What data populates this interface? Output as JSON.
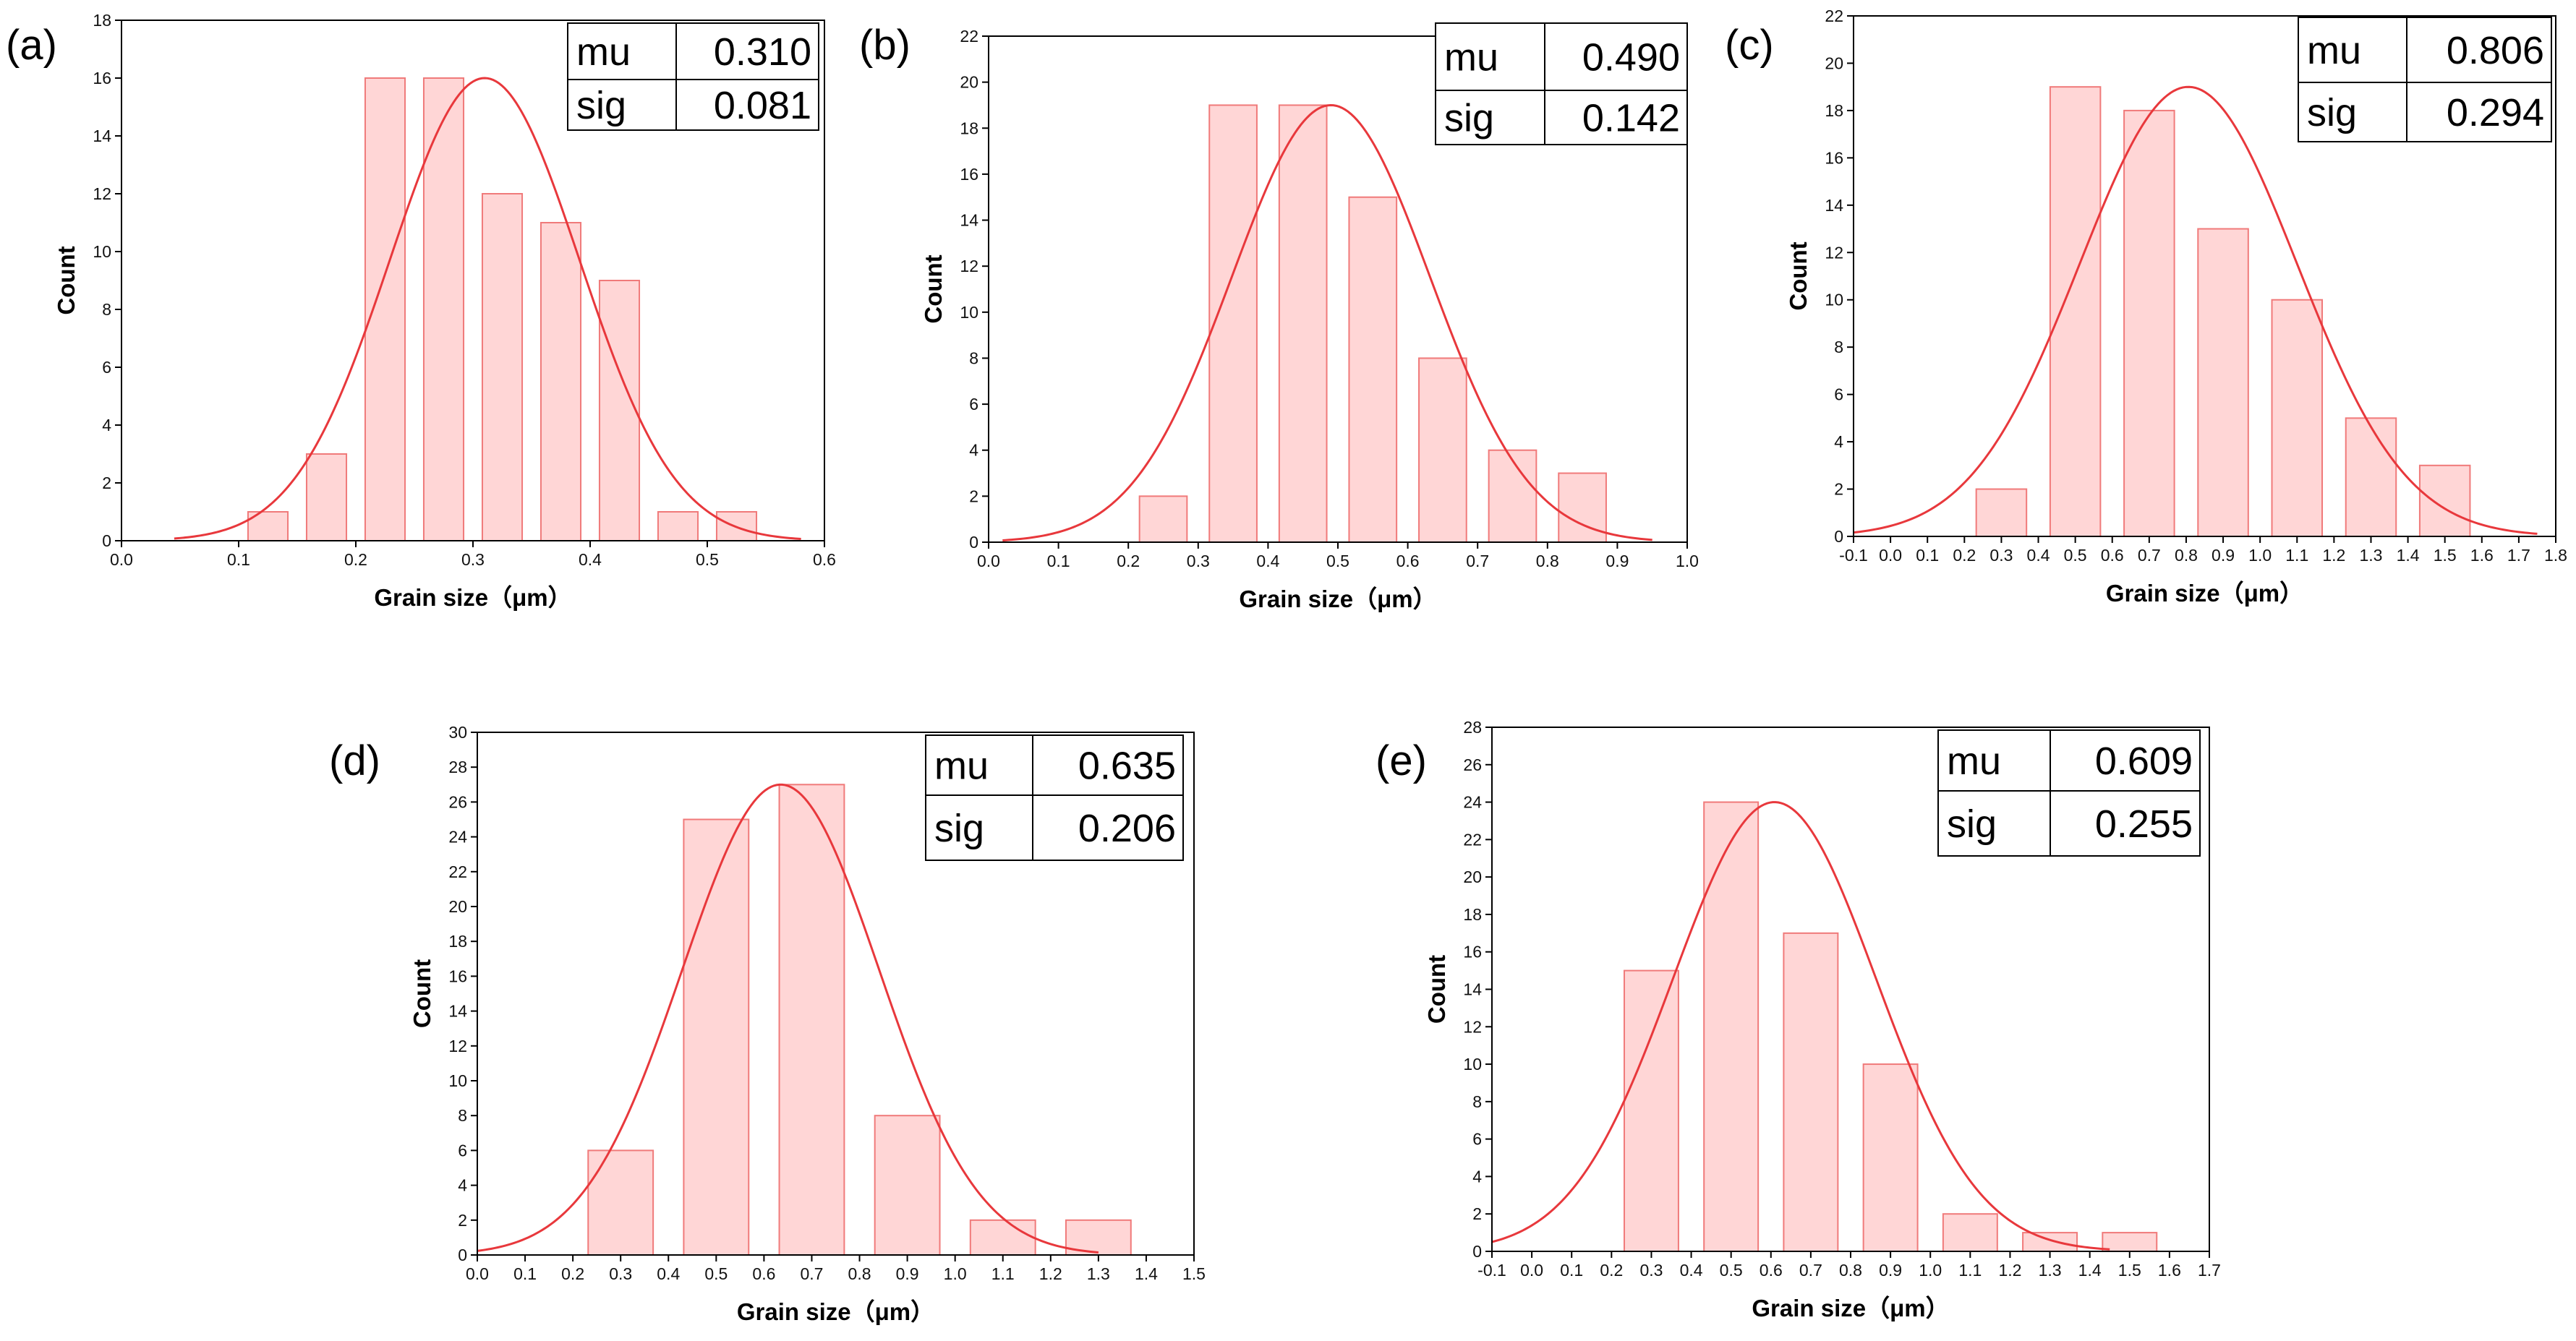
{
  "colors": {
    "bar_fill": "#ffd6d6",
    "bar_stroke": "#f07a7a",
    "curve": "#e8383c",
    "axis": "#000000"
  },
  "chart_data": [
    {
      "panel": "(a)",
      "type": "bar",
      "title": "",
      "xlabel": "Grain size（μm）",
      "ylabel": "Count",
      "xlim": [
        0.0,
        0.6
      ],
      "ylim": [
        0,
        18
      ],
      "xticks": [
        "0.0",
        "0.1",
        "0.2",
        "0.3",
        "0.4",
        "0.5",
        "0.6"
      ],
      "yticks": [
        "0",
        "2",
        "4",
        "6",
        "8",
        "10",
        "12",
        "14",
        "16",
        "18"
      ],
      "bin_width": 0.05,
      "x": [
        0.125,
        0.175,
        0.225,
        0.275,
        0.325,
        0.375,
        0.425,
        0.475,
        0.525
      ],
      "values": [
        1,
        3,
        16,
        16,
        12,
        11,
        9,
        1,
        1
      ],
      "fit": {
        "type": "normal",
        "mu": 0.31,
        "sig": 0.081,
        "peak": 16,
        "x_range": [
          0.045,
          0.58
        ]
      },
      "stats_table": [
        {
          "label": "mu",
          "value": "0.310"
        },
        {
          "label": "sig",
          "value": "0.081"
        }
      ]
    },
    {
      "panel": "(b)",
      "type": "bar",
      "title": "",
      "xlabel": "Grain size（μm）",
      "ylabel": "Count",
      "xlim": [
        0.0,
        1.0
      ],
      "ylim": [
        0,
        22
      ],
      "xticks": [
        "0.0",
        "0.1",
        "0.2",
        "0.3",
        "0.4",
        "0.5",
        "0.6",
        "0.7",
        "0.8",
        "0.9",
        "1.0"
      ],
      "yticks": [
        "0",
        "2",
        "4",
        "6",
        "8",
        "10",
        "12",
        "14",
        "16",
        "18",
        "20",
        "22"
      ],
      "bin_width": 0.1,
      "x": [
        0.25,
        0.35,
        0.45,
        0.55,
        0.65,
        0.75,
        0.85
      ],
      "values": [
        2,
        19,
        19,
        15,
        8,
        4,
        3
      ],
      "fit": {
        "type": "normal",
        "mu": 0.49,
        "sig": 0.142,
        "peak": 19,
        "x_range": [
          0.02,
          0.95
        ]
      },
      "stats_table": [
        {
          "label": "mu",
          "value": "0.490"
        },
        {
          "label": "sig",
          "value": "0.142"
        }
      ]
    },
    {
      "panel": "(c)",
      "type": "bar",
      "title": "",
      "xlabel": "Grain size（μm）",
      "ylabel": "Count",
      "xlim": [
        -0.1,
        1.8
      ],
      "ylim": [
        0,
        22
      ],
      "xticks": [
        "-0.1",
        "0.0",
        "0.1",
        "0.2",
        "0.3",
        "0.4",
        "0.5",
        "0.6",
        "0.7",
        "0.8",
        "0.9",
        "1.0",
        "1.1",
        "1.2",
        "1.3",
        "1.4",
        "1.5",
        "1.6",
        "1.7",
        "1.8"
      ],
      "yticks": [
        "0",
        "2",
        "4",
        "6",
        "8",
        "10",
        "12",
        "14",
        "16",
        "18",
        "20",
        "22"
      ],
      "bin_width": 0.2,
      "x": [
        0.3,
        0.5,
        0.7,
        0.9,
        1.1,
        1.3,
        1.5
      ],
      "values": [
        2,
        19,
        18,
        13,
        10,
        5,
        3
      ],
      "fit": {
        "type": "normal",
        "mu": 0.806,
        "sig": 0.294,
        "peak": 19,
        "x_range": [
          -0.1,
          1.75
        ]
      },
      "stats_table": [
        {
          "label": "mu",
          "value": "0.806"
        },
        {
          "label": "sig",
          "value": "0.294"
        }
      ]
    },
    {
      "panel": "(d)",
      "type": "bar",
      "title": "",
      "xlabel": "Grain size（μm）",
      "ylabel": "Count",
      "xlim": [
        0.0,
        1.5
      ],
      "ylim": [
        0,
        30
      ],
      "xticks": [
        "0.0",
        "0.1",
        "0.2",
        "0.3",
        "0.4",
        "0.5",
        "0.6",
        "0.7",
        "0.8",
        "0.9",
        "1.0",
        "1.1",
        "1.2",
        "1.3",
        "1.4",
        "1.5"
      ],
      "yticks": [
        "0",
        "2",
        "4",
        "6",
        "8",
        "10",
        "12",
        "14",
        "16",
        "18",
        "20",
        "22",
        "24",
        "26",
        "28",
        "30"
      ],
      "bin_width": 0.2,
      "x": [
        0.3,
        0.5,
        0.7,
        0.9,
        1.1,
        1.3
      ],
      "values": [
        6,
        25,
        27,
        8,
        2,
        2
      ],
      "fit": {
        "type": "normal",
        "mu": 0.635,
        "sig": 0.206,
        "peak": 27,
        "x_range": [
          0.0,
          1.3
        ]
      },
      "stats_table": [
        {
          "label": "mu",
          "value": "0.635"
        },
        {
          "label": "sig",
          "value": "0.206"
        }
      ]
    },
    {
      "panel": "(e)",
      "type": "bar",
      "title": "",
      "xlabel": "Grain size（μm）",
      "ylabel": "Count",
      "xlim": [
        -0.1,
        1.7
      ],
      "ylim": [
        0,
        28
      ],
      "xticks": [
        "-0.1",
        "0.0",
        "0.1",
        "0.2",
        "0.3",
        "0.4",
        "0.5",
        "0.6",
        "0.7",
        "0.8",
        "0.9",
        "1.0",
        "1.1",
        "1.2",
        "1.3",
        "1.4",
        "1.5",
        "1.6",
        "1.7"
      ],
      "yticks": [
        "0",
        "2",
        "4",
        "6",
        "8",
        "10",
        "12",
        "14",
        "16",
        "18",
        "20",
        "22",
        "24",
        "26",
        "28"
      ],
      "bin_width": 0.2,
      "x": [
        0.3,
        0.5,
        0.7,
        0.9,
        1.1,
        1.3,
        1.5
      ],
      "values": [
        15,
        24,
        17,
        10,
        2,
        1,
        1
      ],
      "fit": {
        "type": "normal",
        "mu": 0.609,
        "sig": 0.255,
        "peak": 24,
        "x_range": [
          -0.1,
          1.45
        ]
      },
      "stats_table": [
        {
          "label": "mu",
          "value": "0.609"
        },
        {
          "label": "sig",
          "value": "0.255"
        }
      ]
    }
  ]
}
